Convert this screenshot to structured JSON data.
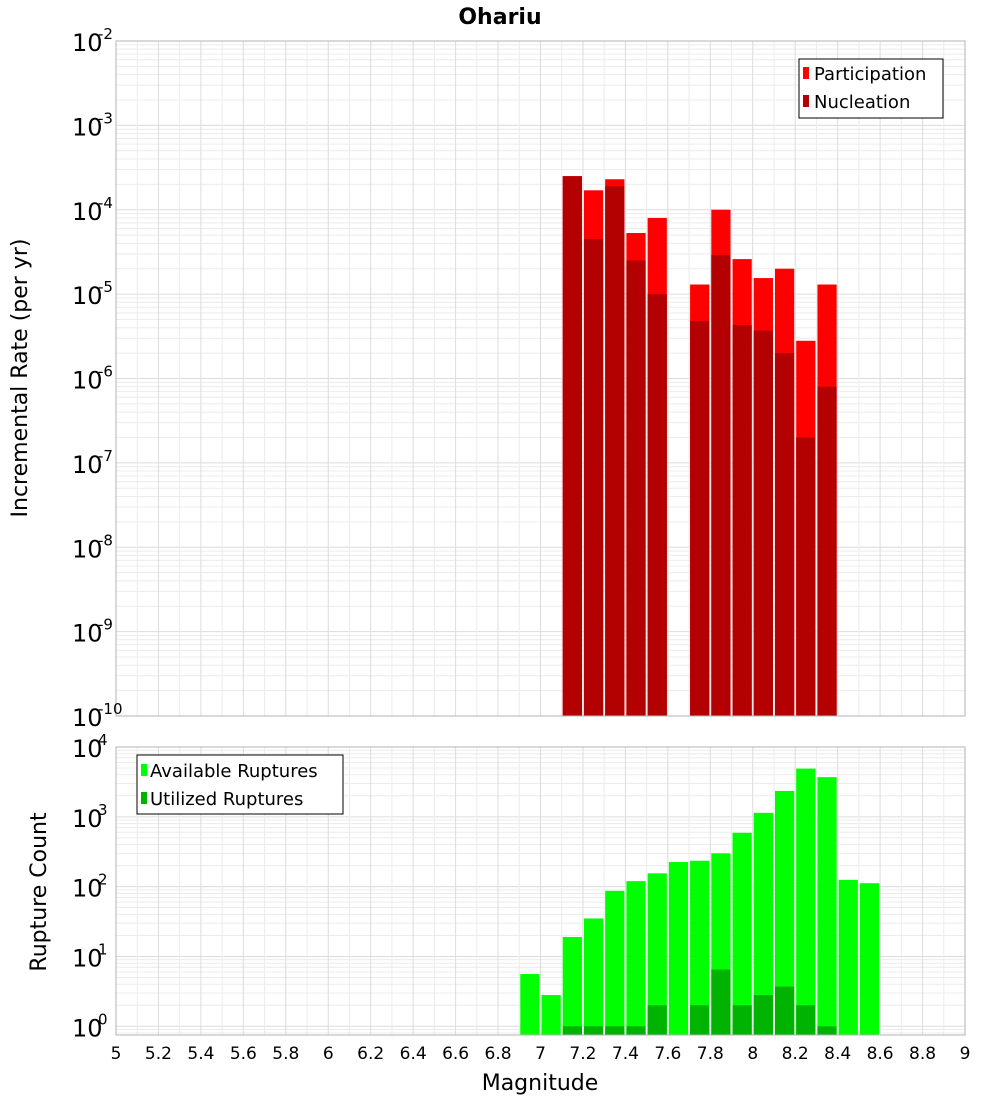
{
  "title": "Ohariu",
  "x_axis": {
    "label": "Magnitude",
    "range": [
      5,
      9
    ],
    "tick_labels": [
      "5",
      "5.2",
      "5.4",
      "5.6",
      "5.8",
      "6",
      "6.2",
      "6.4",
      "6.6",
      "6.8",
      "7",
      "7.2",
      "7.4",
      "7.6",
      "7.8",
      "8",
      "8.2",
      "8.4",
      "8.6",
      "8.8",
      "9"
    ]
  },
  "chart_data": [
    {
      "type": "bar",
      "panel": "top",
      "ylabel": "Incremental Rate (per yr)",
      "yscale": "log",
      "ylim": [
        1e-10,
        0.01
      ],
      "y_tick_exponents": [
        "-10",
        "-9",
        "-8",
        "-7",
        "-6",
        "-5",
        "-4",
        "-3",
        "-2"
      ],
      "grid": true,
      "legend_position": "top-right",
      "bin_width": 0.1,
      "x": [
        7.15,
        7.25,
        7.35,
        7.45,
        7.55,
        7.75,
        7.85,
        7.95,
        8.05,
        8.15,
        8.25,
        8.35
      ],
      "series": [
        {
          "name": "Participation",
          "color": "#ff0000",
          "values": [
            0.00025,
            0.00017,
            0.00023,
            5.3e-05,
            8e-05,
            1.3e-05,
            0.0001,
            2.6e-05,
            1.55e-05,
            2e-05,
            2.8e-06,
            1.3e-05
          ]
        },
        {
          "name": "Nucleation",
          "color": "#b30000",
          "values": [
            0.00025,
            4.5e-05,
            0.00019,
            2.5e-05,
            1e-05,
            4.8e-06,
            2.9e-05,
            4.3e-06,
            3.7e-06,
            2e-06,
            2e-07,
            8e-07
          ]
        }
      ]
    },
    {
      "type": "bar",
      "panel": "bottom",
      "ylabel": "Rupture Count",
      "yscale": "log",
      "ylim": [
        0.75,
        10000
      ],
      "y_tick_exponents": [
        "0",
        "1",
        "2",
        "3",
        "4"
      ],
      "grid": true,
      "legend_position": "top-left",
      "bin_width": 0.1,
      "x": [
        6.95,
        7.05,
        7.15,
        7.25,
        7.35,
        7.45,
        7.55,
        7.65,
        7.75,
        7.85,
        7.95,
        8.05,
        8.15,
        8.25,
        8.35,
        8.45,
        8.55
      ],
      "series": [
        {
          "name": "Available Ruptures",
          "color": "#00ff00",
          "values": [
            5.6,
            2.8,
            19,
            35,
            87,
            120,
            155,
            225,
            235,
            300,
            590,
            1140,
            2350,
            4900,
            3700,
            125,
            112
          ]
        },
        {
          "name": "Utilized Ruptures",
          "color": "#00b300",
          "values": [
            0,
            0,
            1,
            1,
            1,
            1,
            2,
            0,
            2,
            6.5,
            2,
            2.8,
            3.7,
            2,
            1,
            0,
            0
          ]
        }
      ]
    }
  ]
}
